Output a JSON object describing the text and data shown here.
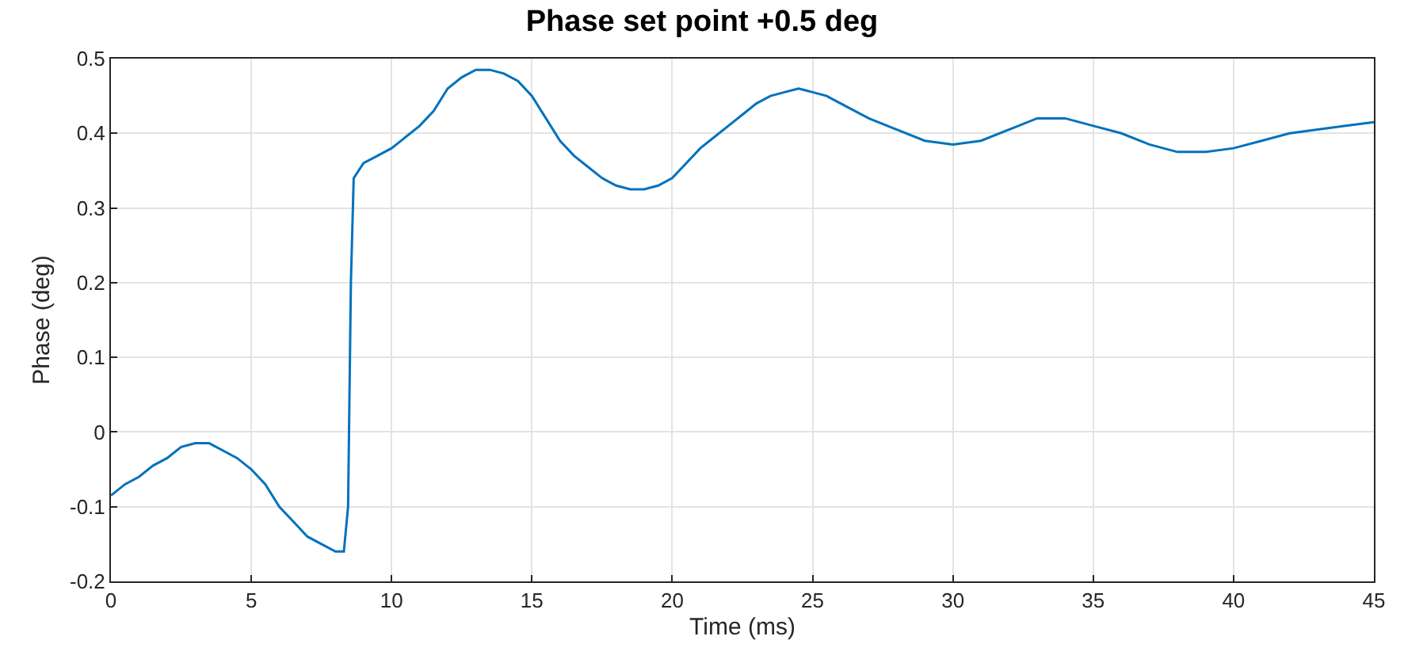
{
  "chart_data": {
    "type": "line",
    "title": "Phase set point +0.5 deg",
    "xlabel": "Time (ms)",
    "ylabel": "Phase (deg)",
    "xlim": [
      0,
      45
    ],
    "xticks": [
      0,
      5,
      10,
      15,
      20,
      25,
      30,
      35,
      40,
      45
    ],
    "ylim": [
      -0.2,
      0.5
    ],
    "yticks": [
      -0.2,
      -0.1,
      0,
      0.1,
      0.2,
      0.3,
      0.4,
      0.5
    ],
    "grid": true,
    "marker": "none",
    "line_style": "solid",
    "series": [
      {
        "color": "#0072bd",
        "x": [
          0,
          0.5,
          1,
          1.5,
          2,
          2.5,
          3,
          3.5,
          4,
          4.5,
          5,
          5.5,
          6,
          6.5,
          7,
          7.5,
          8,
          8.3,
          8.45,
          8.55,
          8.65,
          9,
          9.5,
          10,
          10.5,
          11,
          11.5,
          12,
          12.5,
          13,
          13.5,
          14,
          14.5,
          15,
          15.5,
          16,
          16.5,
          17,
          17.5,
          18,
          18.5,
          19,
          19.5,
          20,
          20.5,
          21,
          21.5,
          22,
          22.5,
          23,
          23.5,
          24,
          24.5,
          25,
          25.5,
          26,
          27,
          28,
          29,
          30,
          31,
          32,
          33,
          34,
          35,
          36,
          37,
          38,
          39,
          40,
          41,
          42,
          43,
          44,
          45
        ],
        "values": [
          -0.085,
          -0.07,
          -0.06,
          -0.045,
          -0.035,
          -0.02,
          -0.015,
          -0.015,
          -0.025,
          -0.035,
          -0.05,
          -0.07,
          -0.1,
          -0.12,
          -0.14,
          -0.15,
          -0.16,
          -0.16,
          -0.1,
          0.2,
          0.34,
          0.36,
          0.37,
          0.38,
          0.395,
          0.41,
          0.43,
          0.46,
          0.475,
          0.485,
          0.485,
          0.48,
          0.47,
          0.45,
          0.42,
          0.39,
          0.37,
          0.355,
          0.34,
          0.33,
          0.325,
          0.325,
          0.33,
          0.34,
          0.36,
          0.38,
          0.395,
          0.41,
          0.425,
          0.44,
          0.45,
          0.455,
          0.46,
          0.455,
          0.45,
          0.44,
          0.42,
          0.405,
          0.39,
          0.385,
          0.39,
          0.405,
          0.42,
          0.42,
          0.41,
          0.4,
          0.385,
          0.375,
          0.375,
          0.38,
          0.39,
          0.4,
          0.405,
          0.41,
          0.415
        ]
      }
    ]
  }
}
